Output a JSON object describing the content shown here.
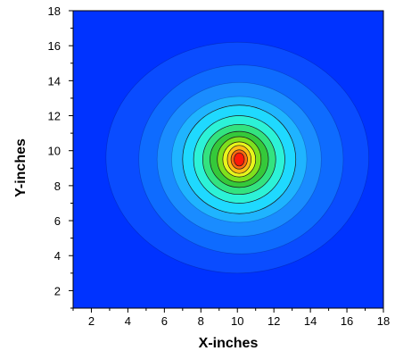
{
  "chart_data": {
    "type": "heatmap",
    "title": "",
    "xlabel": "X-inches",
    "ylabel": "Y-inches",
    "xlim": [
      1,
      18
    ],
    "ylim": [
      1,
      18
    ],
    "x_ticks": [
      "2",
      "4",
      "6",
      "8",
      "10",
      "12",
      "14",
      "16",
      "18"
    ],
    "y_ticks": [
      "2",
      "4",
      "6",
      "8",
      "10",
      "12",
      "14",
      "16",
      "18"
    ],
    "grid": false,
    "legend": "none",
    "colors": {
      "background": "#0033ff",
      "plot_border": "#000000"
    },
    "contour_fill_colors": [
      "#0a4cff",
      "#0e6bff",
      "#1a8cff",
      "#1fb4ff",
      "#1fd9ff",
      "#2cf2d7",
      "#33e37f",
      "#35c93a",
      "#7fe01d",
      "#e9f51b",
      "#ffbd13",
      "#ff6b10",
      "#ff1a08"
    ],
    "peak": {
      "x": 10.0,
      "y": 9.5
    },
    "contour_levels": [
      {
        "level": 1,
        "cx": 10.0,
        "cy": 9.6,
        "rx": 7.2,
        "ry": 6.6
      },
      {
        "level": 2,
        "cx": 10.2,
        "cy": 9.5,
        "rx": 5.6,
        "ry": 5.4
      },
      {
        "level": 3,
        "cx": 10.1,
        "cy": 9.5,
        "rx": 4.5,
        "ry": 4.4
      },
      {
        "level": 4,
        "cx": 10.1,
        "cy": 9.5,
        "rx": 3.7,
        "ry": 3.6
      },
      {
        "level": 5,
        "cx": 10.1,
        "cy": 9.5,
        "rx": 3.1,
        "ry": 3.1
      },
      {
        "level": 6,
        "cx": 10.1,
        "cy": 9.5,
        "rx": 2.5,
        "ry": 2.5
      },
      {
        "level": 7,
        "cx": 10.1,
        "cy": 9.5,
        "rx": 2.0,
        "ry": 2.0
      },
      {
        "level": 8,
        "cx": 10.1,
        "cy": 9.5,
        "rx": 1.6,
        "ry": 1.6
      },
      {
        "level": 9,
        "cx": 10.1,
        "cy": 9.5,
        "rx": 1.2,
        "ry": 1.3
      },
      {
        "level": 10,
        "cx": 10.1,
        "cy": 9.5,
        "rx": 0.9,
        "ry": 1.0
      },
      {
        "level": 11,
        "cx": 10.1,
        "cy": 9.5,
        "rx": 0.65,
        "ry": 0.8
      },
      {
        "level": 12,
        "cx": 10.1,
        "cy": 9.5,
        "rx": 0.45,
        "ry": 0.55
      },
      {
        "level": 13,
        "cx": 10.1,
        "cy": 9.5,
        "rx": 0.28,
        "ry": 0.38
      }
    ]
  }
}
